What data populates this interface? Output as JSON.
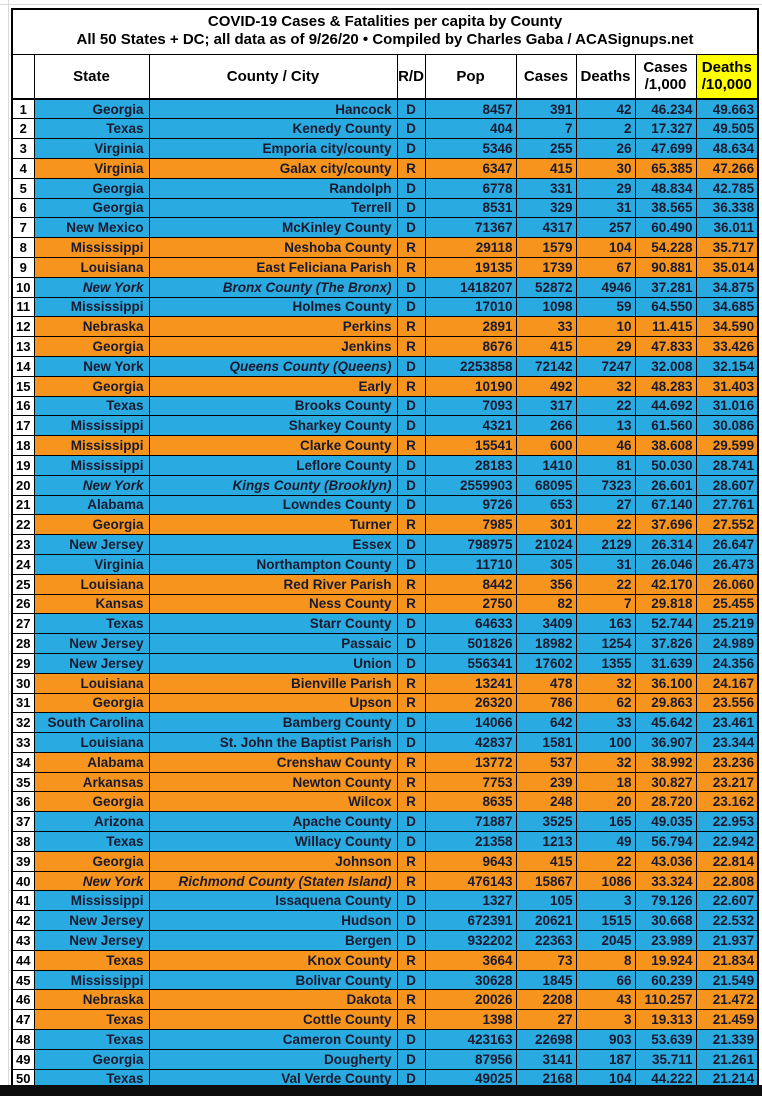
{
  "title": {
    "line1": "COVID-19 Cases & Fatalities per capita by County",
    "line2": "All 50 States + DC; all data as of 9/26/20  • Compiled by Charles Gaba / ACASignups.net"
  },
  "colors": {
    "dem_row": "#29abe2",
    "rep_row": "#f7941d",
    "header_highlight": "#ffff00",
    "text": "#1a1a2e"
  },
  "table": {
    "headers": [
      {
        "text": ""
      },
      {
        "text": "State"
      },
      {
        "text": "County / City"
      },
      {
        "text": "R/D"
      },
      {
        "text": "Pop"
      },
      {
        "text": "Cases"
      },
      {
        "text": "Deaths"
      },
      {
        "text": "Cases\n/1,000"
      },
      {
        "text": "Deaths\n/10,000",
        "highlight": true
      }
    ],
    "italics": {
      "10": "both",
      "14": "county",
      "20": "both",
      "40": "both"
    },
    "rows": [
      [
        1,
        "Georgia",
        "Hancock",
        "D",
        8457,
        391,
        42,
        "46.234",
        "49.663"
      ],
      [
        2,
        "Texas",
        "Kenedy County",
        "D",
        404,
        7,
        2,
        "17.327",
        "49.505"
      ],
      [
        3,
        "Virginia",
        "Emporia city/county",
        "D",
        5346,
        255,
        26,
        "47.699",
        "48.634"
      ],
      [
        4,
        "Virginia",
        "Galax city/county",
        "R",
        6347,
        415,
        30,
        "65.385",
        "47.266"
      ],
      [
        5,
        "Georgia",
        "Randolph",
        "D",
        6778,
        331,
        29,
        "48.834",
        "42.785"
      ],
      [
        6,
        "Georgia",
        "Terrell",
        "D",
        8531,
        329,
        31,
        "38.565",
        "36.338"
      ],
      [
        7,
        "New Mexico",
        "McKinley County",
        "D",
        71367,
        4317,
        257,
        "60.490",
        "36.011"
      ],
      [
        8,
        "Mississippi",
        "Neshoba County",
        "R",
        29118,
        1579,
        104,
        "54.228",
        "35.717"
      ],
      [
        9,
        "Louisiana",
        "East Feliciana Parish",
        "R",
        19135,
        1739,
        67,
        "90.881",
        "35.014"
      ],
      [
        10,
        "New York",
        "Bronx County (The Bronx)",
        "D",
        1418207,
        52872,
        4946,
        "37.281",
        "34.875"
      ],
      [
        11,
        "Mississippi",
        "Holmes County",
        "D",
        17010,
        1098,
        59,
        "64.550",
        "34.685"
      ],
      [
        12,
        "Nebraska",
        "Perkins",
        "R",
        2891,
        33,
        10,
        "11.415",
        "34.590"
      ],
      [
        13,
        "Georgia",
        "Jenkins",
        "R",
        8676,
        415,
        29,
        "47.833",
        "33.426"
      ],
      [
        14,
        "New York",
        "Queens County (Queens)",
        "D",
        2253858,
        72142,
        7247,
        "32.008",
        "32.154"
      ],
      [
        15,
        "Georgia",
        "Early",
        "R",
        10190,
        492,
        32,
        "48.283",
        "31.403"
      ],
      [
        16,
        "Texas",
        "Brooks County",
        "D",
        7093,
        317,
        22,
        "44.692",
        "31.016"
      ],
      [
        17,
        "Mississippi",
        "Sharkey County",
        "D",
        4321,
        266,
        13,
        "61.560",
        "30.086"
      ],
      [
        18,
        "Mississippi",
        "Clarke County",
        "R",
        15541,
        600,
        46,
        "38.608",
        "29.599"
      ],
      [
        19,
        "Mississippi",
        "Leflore County",
        "D",
        28183,
        1410,
        81,
        "50.030",
        "28.741"
      ],
      [
        20,
        "New York",
        "Kings County (Brooklyn)",
        "D",
        2559903,
        68095,
        7323,
        "26.601",
        "28.607"
      ],
      [
        21,
        "Alabama",
        "Lowndes County",
        "D",
        9726,
        653,
        27,
        "67.140",
        "27.761"
      ],
      [
        22,
        "Georgia",
        "Turner",
        "R",
        7985,
        301,
        22,
        "37.696",
        "27.552"
      ],
      [
        23,
        "New Jersey",
        "Essex",
        "D",
        798975,
        21024,
        2129,
        "26.314",
        "26.647"
      ],
      [
        24,
        "Virginia",
        "Northampton County",
        "D",
        11710,
        305,
        31,
        "26.046",
        "26.473"
      ],
      [
        25,
        "Louisiana",
        "Red River Parish",
        "R",
        8442,
        356,
        22,
        "42.170",
        "26.060"
      ],
      [
        26,
        "Kansas",
        "Ness County",
        "R",
        2750,
        82,
        7,
        "29.818",
        "25.455"
      ],
      [
        27,
        "Texas",
        "Starr County",
        "D",
        64633,
        3409,
        163,
        "52.744",
        "25.219"
      ],
      [
        28,
        "New Jersey",
        "Passaic",
        "D",
        501826,
        18982,
        1254,
        "37.826",
        "24.989"
      ],
      [
        29,
        "New Jersey",
        "Union",
        "D",
        556341,
        17602,
        1355,
        "31.639",
        "24.356"
      ],
      [
        30,
        "Louisiana",
        "Bienville Parish",
        "R",
        13241,
        478,
        32,
        "36.100",
        "24.167"
      ],
      [
        31,
        "Georgia",
        "Upson",
        "R",
        26320,
        786,
        62,
        "29.863",
        "23.556"
      ],
      [
        32,
        "South Carolina",
        "Bamberg County",
        "D",
        14066,
        642,
        33,
        "45.642",
        "23.461"
      ],
      [
        33,
        "Louisiana",
        "St. John the Baptist Parish",
        "D",
        42837,
        1581,
        100,
        "36.907",
        "23.344"
      ],
      [
        34,
        "Alabama",
        "Crenshaw County",
        "R",
        13772,
        537,
        32,
        "38.992",
        "23.236"
      ],
      [
        35,
        "Arkansas",
        "Newton County",
        "R",
        7753,
        239,
        18,
        "30.827",
        "23.217"
      ],
      [
        36,
        "Georgia",
        "Wilcox",
        "R",
        8635,
        248,
        20,
        "28.720",
        "23.162"
      ],
      [
        37,
        "Arizona",
        "Apache County",
        "D",
        71887,
        3525,
        165,
        "49.035",
        "22.953"
      ],
      [
        38,
        "Texas",
        "Willacy County",
        "D",
        21358,
        1213,
        49,
        "56.794",
        "22.942"
      ],
      [
        39,
        "Georgia",
        "Johnson",
        "R",
        9643,
        415,
        22,
        "43.036",
        "22.814"
      ],
      [
        40,
        "New York",
        "Richmond County (Staten Island)",
        "R",
        476143,
        15867,
        1086,
        "33.324",
        "22.808"
      ],
      [
        41,
        "Mississippi",
        "Issaquena County",
        "D",
        1327,
        105,
        3,
        "79.126",
        "22.607"
      ],
      [
        42,
        "New Jersey",
        "Hudson",
        "D",
        672391,
        20621,
        1515,
        "30.668",
        "22.532"
      ],
      [
        43,
        "New Jersey",
        "Bergen",
        "D",
        932202,
        22363,
        2045,
        "23.989",
        "21.937"
      ],
      [
        44,
        "Texas",
        "Knox County",
        "R",
        3664,
        73,
        8,
        "19.924",
        "21.834"
      ],
      [
        45,
        "Mississippi",
        "Bolivar County",
        "D",
        30628,
        1845,
        66,
        "60.239",
        "21.549"
      ],
      [
        46,
        "Nebraska",
        "Dakota",
        "R",
        20026,
        2208,
        43,
        "110.257",
        "21.472"
      ],
      [
        47,
        "Texas",
        "Cottle County",
        "R",
        1398,
        27,
        3,
        "19.313",
        "21.459"
      ],
      [
        48,
        "Texas",
        "Cameron County",
        "D",
        423163,
        22698,
        903,
        "53.639",
        "21.339"
      ],
      [
        49,
        "Georgia",
        "Dougherty",
        "D",
        87956,
        3141,
        187,
        "35.711",
        "21.261"
      ],
      [
        50,
        "Texas",
        "Val Verde County",
        "D",
        49025,
        2168,
        104,
        "44.222",
        "21.214"
      ]
    ]
  }
}
